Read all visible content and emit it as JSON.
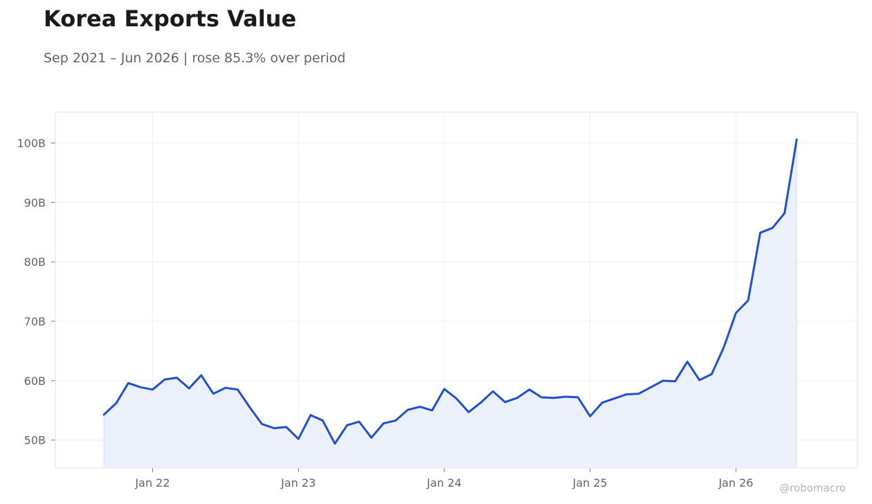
{
  "chart_data": {
    "type": "area",
    "title": "Korea Exports Value",
    "subtitle": "Sep 2021 – Jun 2026 | rose 85.3% over period",
    "xlabel": "",
    "ylabel": "",
    "ylim": [
      45.3,
      105.2
    ],
    "yticks": [
      50,
      60,
      70,
      80,
      90,
      100
    ],
    "ytick_labels": [
      "50B",
      "60B",
      "70B",
      "80B",
      "90B",
      "100B"
    ],
    "xticks": [
      "2022-01",
      "2023-01",
      "2024-01",
      "2025-01",
      "2026-01"
    ],
    "xtick_labels": [
      "Jan 22",
      "Jan 23",
      "Jan 24",
      "Jan 25",
      "Jan 26"
    ],
    "xlim": [
      "2021-05",
      "2026-11"
    ],
    "grid": true,
    "legend": "none",
    "colors": {
      "line": "#1f4fd1",
      "fill": "#ecf0fb",
      "grid": "#eeeeee",
      "frame": "#e2e2e2"
    },
    "series": [
      {
        "x": [
          "2021-09",
          "2021-10",
          "2021-11",
          "2021-12",
          "2022-01",
          "2022-02",
          "2022-03",
          "2022-04",
          "2022-05",
          "2022-06",
          "2022-07",
          "2022-08",
          "2022-09",
          "2022-10",
          "2022-11",
          "2022-12",
          "2023-01",
          "2023-02",
          "2023-03",
          "2023-04",
          "2023-05",
          "2023-06",
          "2023-07",
          "2023-08",
          "2023-09",
          "2023-10",
          "2023-11",
          "2023-12",
          "2024-01",
          "2024-02",
          "2024-03",
          "2024-04",
          "2024-05",
          "2024-06",
          "2024-07",
          "2024-08",
          "2024-09",
          "2024-10",
          "2024-11",
          "2024-12",
          "2025-01",
          "2025-02",
          "2025-03",
          "2025-04",
          "2025-05",
          "2025-06",
          "2025-07",
          "2025-08",
          "2025-09",
          "2025-10",
          "2025-11",
          "2025-12",
          "2026-01",
          "2026-02",
          "2026-03",
          "2026-04",
          "2026-05",
          "2026-06"
        ],
        "values": [
          54.3,
          56.2,
          59.6,
          58.9,
          58.5,
          60.2,
          60.5,
          58.7,
          60.9,
          57.8,
          58.8,
          58.5,
          55.5,
          52.7,
          52.0,
          52.2,
          50.2,
          54.2,
          53.3,
          49.4,
          52.5,
          53.1,
          50.4,
          52.8,
          53.3,
          55.1,
          55.6,
          55.0,
          58.6,
          57.0,
          54.7,
          56.3,
          58.2,
          56.4,
          57.1,
          58.5,
          57.2,
          57.1,
          57.3,
          57.2,
          54.0,
          56.3,
          57.0,
          57.7,
          57.8,
          58.9,
          60.0,
          59.9,
          63.2,
          60.1,
          61.1,
          65.6,
          71.4,
          73.5,
          84.9,
          85.7,
          88.2,
          100.6
        ]
      }
    ]
  },
  "watermark": "@robomacro"
}
